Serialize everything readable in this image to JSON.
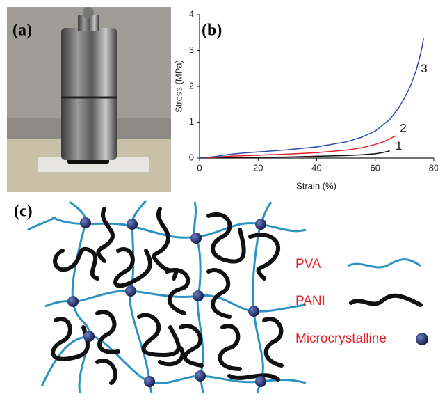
{
  "panels": [
    "(a)",
    "(b)",
    "(c)"
  ],
  "chart_data": {
    "type": "line",
    "x_label": "Strain (%)",
    "y_label": "Stress (MPa)",
    "xlim": [
      0,
      80
    ],
    "xticks": [
      0,
      20,
      40,
      60,
      80
    ],
    "ylim": [
      0,
      4
    ],
    "yticks": [
      0,
      1,
      2,
      3,
      4
    ],
    "series": [
      {
        "name": "1",
        "color": "#111111",
        "x": [
          0,
          10,
          20,
          30,
          40,
          50,
          55,
          60,
          63,
          65
        ],
        "values": [
          0,
          0.01,
          0.02,
          0.03,
          0.05,
          0.07,
          0.09,
          0.12,
          0.16,
          0.2
        ]
      },
      {
        "name": "2",
        "color": "#e8202a",
        "x": [
          0,
          5,
          10,
          20,
          30,
          40,
          50,
          55,
          60,
          63,
          65,
          67
        ],
        "values": [
          0,
          0.02,
          0.05,
          0.08,
          0.11,
          0.15,
          0.22,
          0.28,
          0.38,
          0.46,
          0.54,
          0.62
        ]
      },
      {
        "name": "3",
        "color": "#2a4ab0",
        "x": [
          0,
          5,
          10,
          15,
          20,
          30,
          40,
          50,
          55,
          60,
          65,
          68,
          70,
          72,
          74,
          75,
          76,
          76.5
        ],
        "values": [
          0,
          0.04,
          0.1,
          0.14,
          0.17,
          0.23,
          0.31,
          0.45,
          0.57,
          0.75,
          1.08,
          1.4,
          1.68,
          2.0,
          2.45,
          2.75,
          3.1,
          3.35
        ]
      }
    ]
  },
  "diagram": {
    "legend": [
      "PVA",
      "PANI",
      "Microcrystalline"
    ]
  }
}
